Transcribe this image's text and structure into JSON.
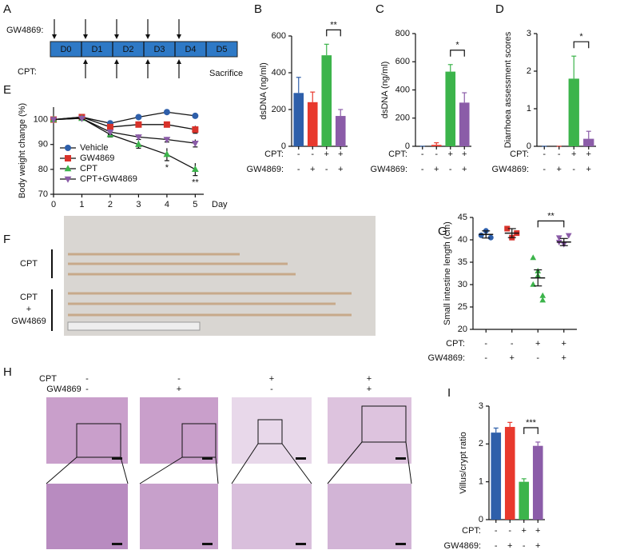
{
  "panel_a": {
    "letter": "A",
    "gw_label": "GW4869:",
    "cpt_label": "CPT:",
    "days": [
      "D0",
      "D1",
      "D2",
      "D3",
      "D4",
      "D5"
    ],
    "end_label": "Sacrifice"
  },
  "chart_data": [
    {
      "type": "bar",
      "letter": "B",
      "ylabel": "dsDNA (ng/ml)",
      "ylim": [
        0,
        600
      ],
      "yticks": [
        0,
        200,
        400,
        600
      ],
      "values": [
        290,
        240,
        495,
        165
      ],
      "errors": [
        85,
        55,
        60,
        35
      ],
      "colors": [
        "#2e5faa",
        "#e8392d",
        "#3cb44b",
        "#8b5ca8"
      ],
      "conditions": [
        {
          "name": "CPT:",
          "signs": [
            "-",
            "-",
            "+",
            "+"
          ]
        },
        {
          "name": "GW4869:",
          "signs": [
            "-",
            "+",
            "-",
            "+"
          ]
        }
      ],
      "significance": "**"
    },
    {
      "type": "bar",
      "letter": "C",
      "ylabel": "dsDNA (ng/ml)",
      "ylim": [
        0,
        800
      ],
      "yticks": [
        0,
        200,
        400,
        600,
        800
      ],
      "values": [
        0,
        10,
        530,
        310
      ],
      "errors": [
        0,
        15,
        50,
        70
      ],
      "colors": [
        "#2e5faa",
        "#e8392d",
        "#3cb44b",
        "#8b5ca8"
      ],
      "conditions": [
        {
          "name": "CPT:",
          "signs": [
            "-",
            "-",
            "+",
            "+"
          ]
        },
        {
          "name": "GW4869:",
          "signs": [
            "-",
            "+",
            "-",
            "+"
          ]
        }
      ],
      "significance": "*"
    },
    {
      "type": "bar",
      "letter": "D",
      "ylabel": "Diarrhoea assessment scores",
      "ylim": [
        0,
        3
      ],
      "yticks": [
        0,
        1,
        2,
        3
      ],
      "values": [
        0,
        0,
        1.8,
        0.2
      ],
      "errors": [
        0,
        0,
        0.6,
        0.2
      ],
      "colors": [
        "#2e5faa",
        "#e8392d",
        "#3cb44b",
        "#8b5ca8"
      ],
      "conditions": [
        {
          "name": "CPT:",
          "signs": [
            "-",
            "-",
            "+",
            "+"
          ]
        },
        {
          "name": "GW4869:",
          "signs": [
            "-",
            "+",
            "-",
            "+"
          ]
        }
      ],
      "significance": "*"
    },
    {
      "type": "line",
      "letter": "E",
      "ylabel": "Body weight change (%)",
      "xlabel": "Day",
      "x": [
        0,
        1,
        2,
        3,
        4,
        5
      ],
      "xlim": [
        0,
        5.3
      ],
      "xticks": [
        0,
        1,
        2,
        3,
        4,
        5
      ],
      "ylim": [
        70,
        105
      ],
      "yticks": [
        70,
        80,
        90,
        100
      ],
      "legend": "lower left",
      "series": [
        {
          "name": "Vehicle",
          "color": "#2e5faa",
          "marker": "circle",
          "values": [
            100,
            101,
            98.5,
            101,
            103,
            101.5
          ],
          "errors": [
            0,
            0.5,
            0.8,
            0.5,
            0.5,
            0.5
          ]
        },
        {
          "name": "GW4869",
          "color": "#d8322a",
          "marker": "square",
          "values": [
            100,
            101,
            97,
            98,
            98,
            96
          ],
          "errors": [
            0,
            0.5,
            1,
            1,
            1,
            1.5
          ]
        },
        {
          "name": "CPT",
          "color": "#3cb44b",
          "marker": "triangle-up",
          "values": [
            100,
            100.5,
            94,
            90,
            86,
            80
          ],
          "errors": [
            0,
            0.5,
            1,
            1.5,
            2.5,
            2.5
          ]
        },
        {
          "name": "CPT+GW4869",
          "color": "#8b5ca8",
          "marker": "triangle-down",
          "values": [
            100,
            100.5,
            95,
            93,
            92,
            90.5
          ],
          "errors": [
            0,
            0.5,
            1,
            1,
            1,
            1.5
          ]
        }
      ],
      "annotations": [
        "*",
        "**"
      ]
    },
    {
      "type": "dot",
      "letter": "G",
      "ylabel": "Small intestine length (cm)",
      "ylim": [
        20,
        45
      ],
      "yticks": [
        20,
        25,
        30,
        35,
        40,
        45
      ],
      "groups": [
        {
          "color": "#2e5faa",
          "marker": "circle",
          "values": [
            41,
            42,
            40.5
          ],
          "mean": 41.2,
          "sem": 0.8
        },
        {
          "color": "#d8322a",
          "marker": "square",
          "values": [
            42.5,
            40.5,
            41.5
          ],
          "mean": 41.5,
          "sem": 1
        },
        {
          "color": "#3cb44b",
          "marker": "triangle-up",
          "values": [
            36,
            33,
            27.5,
            30,
            32,
            26.5
          ],
          "mean": 31.5,
          "sem": 1.8
        },
        {
          "color": "#8b5ca8",
          "marker": "triangle-down",
          "values": [
            40.5,
            39,
            41,
            39.5
          ],
          "mean": 39.5,
          "sem": 0.8
        }
      ],
      "conditions": [
        {
          "name": "CPT:",
          "signs": [
            "-",
            "-",
            "+",
            "+"
          ]
        },
        {
          "name": "GW4869:",
          "signs": [
            "-",
            "+",
            "-",
            "+"
          ]
        }
      ],
      "significance": "**"
    },
    {
      "type": "bar",
      "letter": "I",
      "ylabel": "Villus/crypt ratio",
      "ylim": [
        0,
        3
      ],
      "yticks": [
        0,
        1,
        2,
        3
      ],
      "values": [
        2.3,
        2.45,
        1.0,
        1.95
      ],
      "errors": [
        0.12,
        0.12,
        0.08,
        0.1
      ],
      "colors": [
        "#2e5faa",
        "#e8392d",
        "#3cb44b",
        "#8b5ca8"
      ],
      "conditions": [
        {
          "name": "CPT:",
          "signs": [
            "-",
            "-",
            "+",
            "+"
          ]
        },
        {
          "name": "GW4869:",
          "signs": [
            "-",
            "+",
            "-",
            "+"
          ]
        }
      ],
      "significance": "***"
    }
  ],
  "panel_f": {
    "letter": "F",
    "groups": [
      {
        "lines": [
          "CPT"
        ]
      },
      {
        "lines": [
          "CPT",
          "+",
          "GW4869"
        ]
      }
    ]
  },
  "panel_h": {
    "letter": "H",
    "conditions": [
      {
        "name": "CPT",
        "signs": [
          "-",
          "-",
          "+",
          "+"
        ]
      },
      {
        "name": "GW4869",
        "signs": [
          "-",
          "+",
          "-",
          "+"
        ]
      }
    ]
  }
}
